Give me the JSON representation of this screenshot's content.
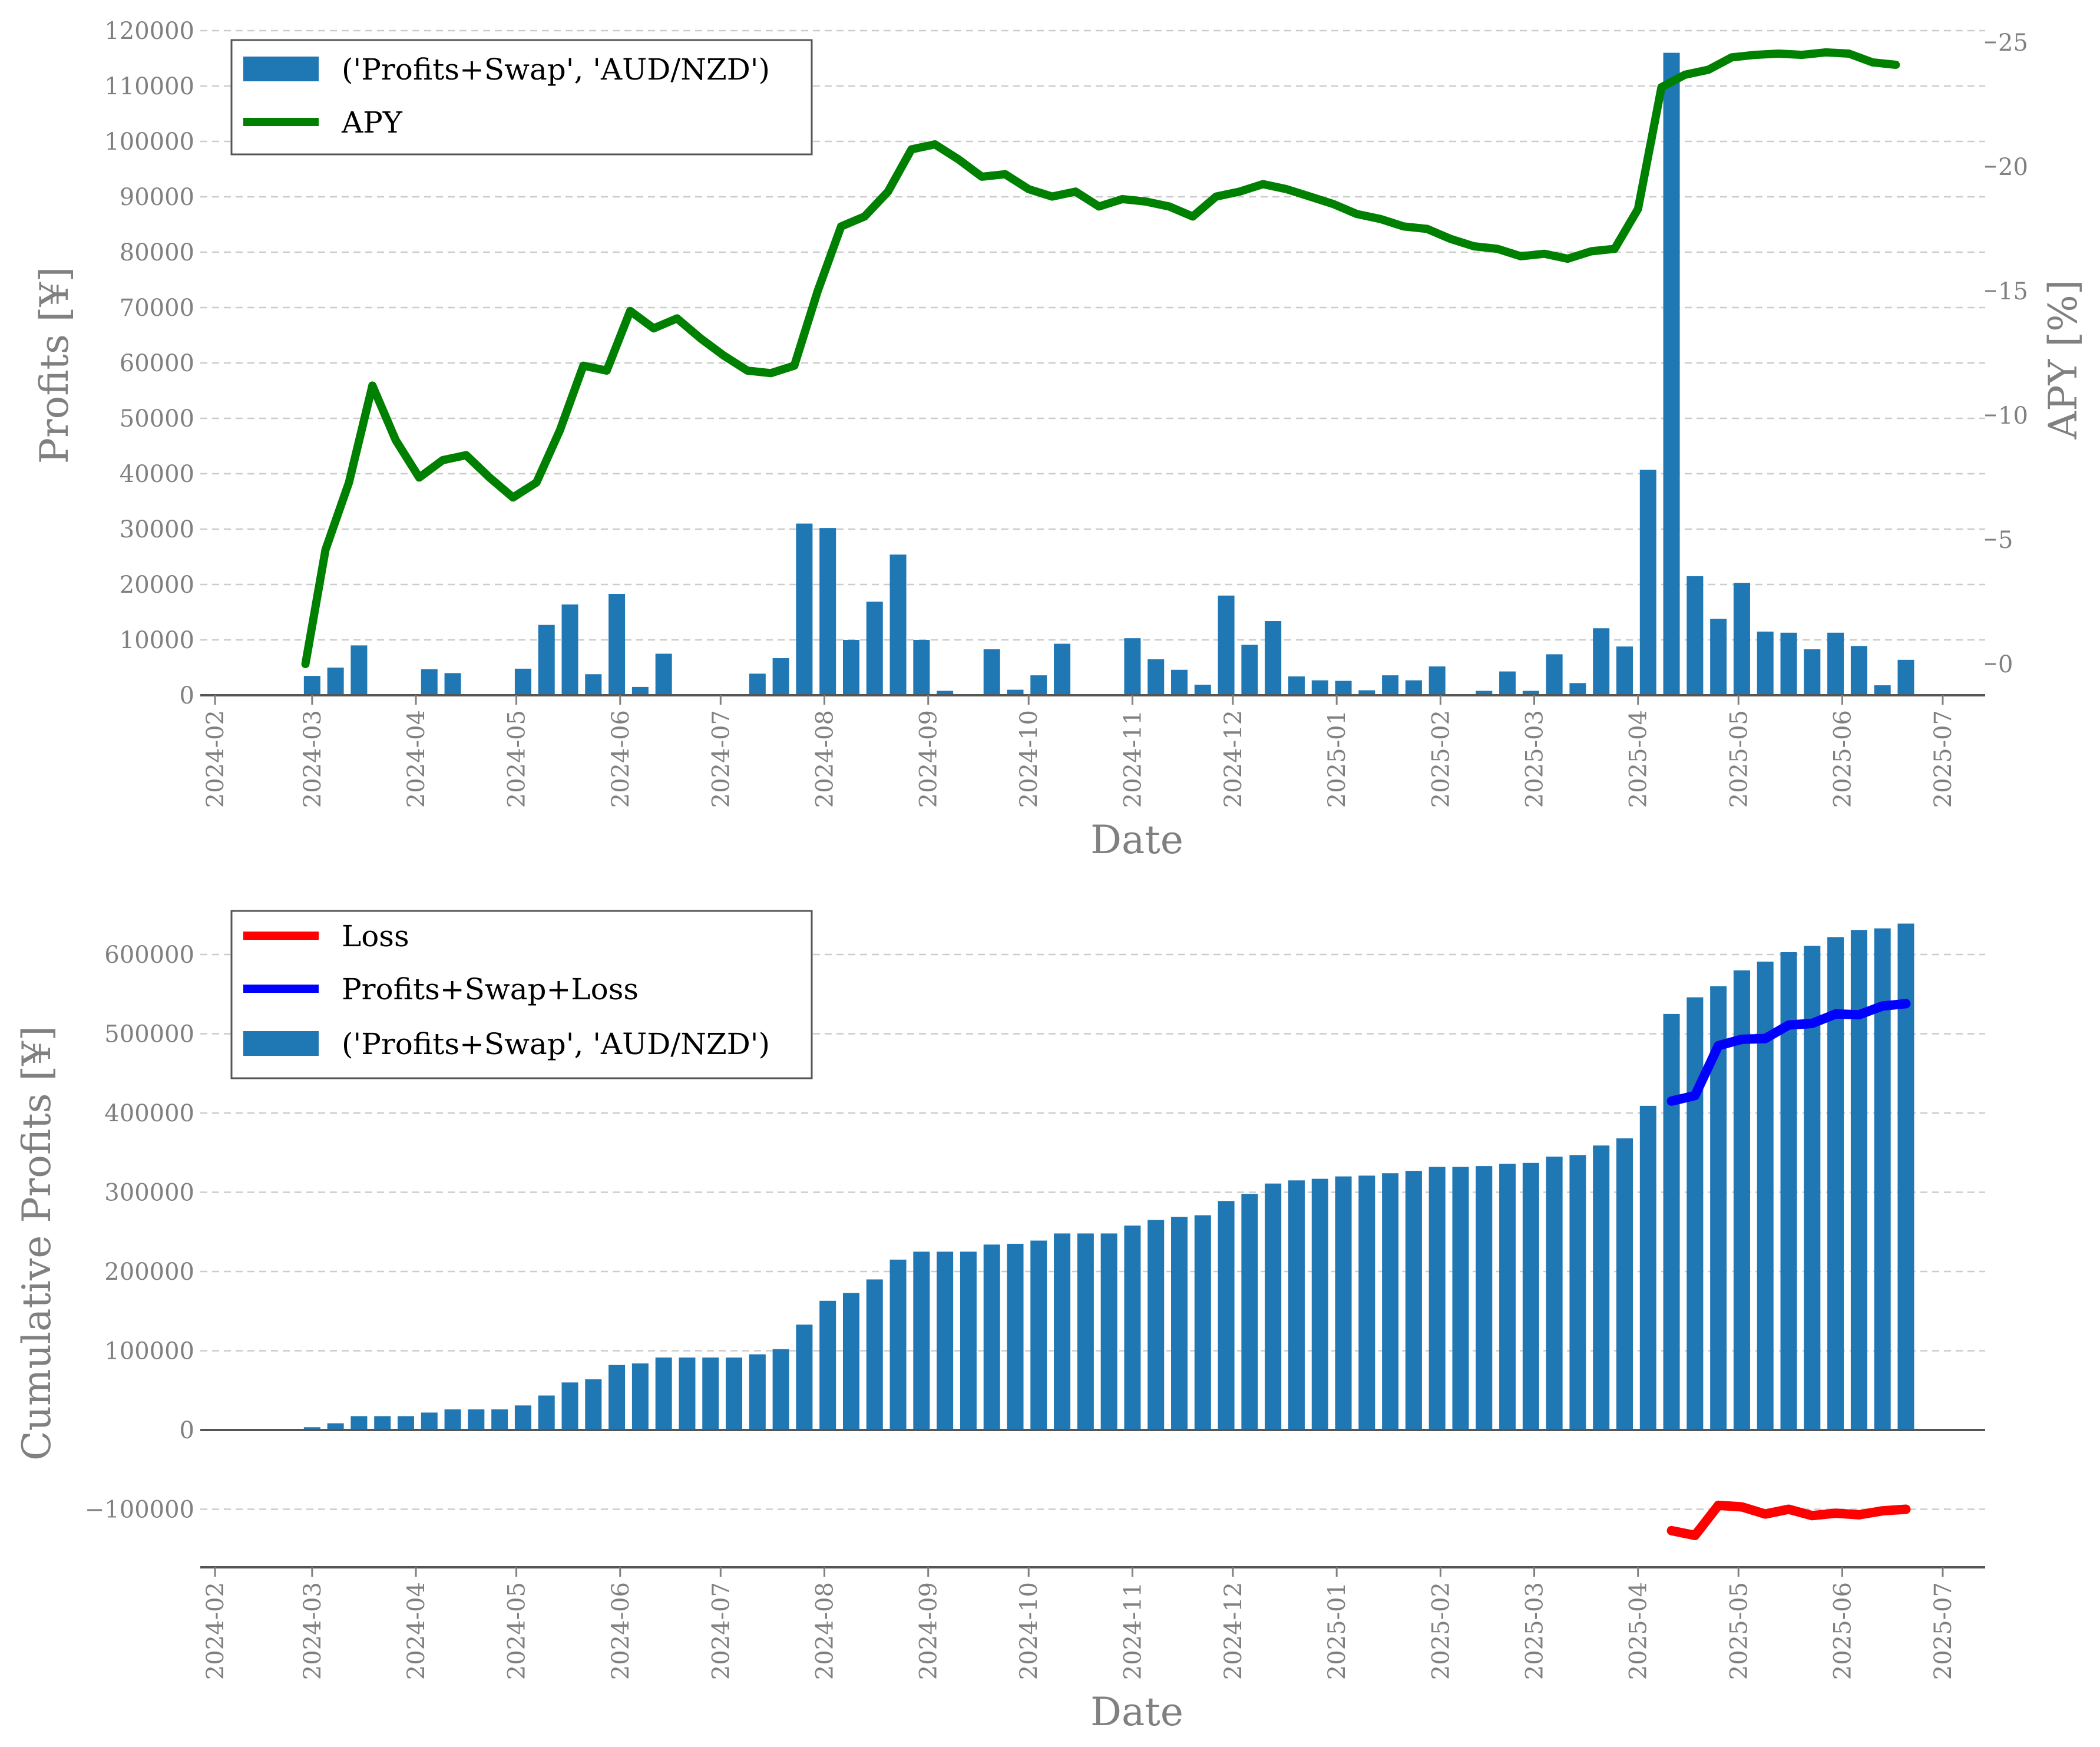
{
  "chart_data": [
    {
      "type": "bar+line",
      "xlabel": "Date",
      "ylabel": "Profits [¥]",
      "y2label": "APY [%]",
      "ylim": [
        0,
        120000
      ],
      "y2lim": [
        -1.2,
        25.5
      ],
      "yticks": [
        0,
        10000,
        20000,
        30000,
        40000,
        50000,
        60000,
        70000,
        80000,
        90000,
        100000,
        110000,
        120000
      ],
      "y2ticks": [
        0,
        5,
        10,
        15,
        20,
        25
      ],
      "xticks": [
        "2024-02",
        "2024-03",
        "2024-04",
        "2024-05",
        "2024-06",
        "2024-07",
        "2024-08",
        "2024-09",
        "2024-10",
        "2024-11",
        "2024-12",
        "2025-01",
        "2025-02",
        "2025-03",
        "2025-04",
        "2025-05",
        "2025-06",
        "2025-07"
      ],
      "grid": "y-dashed",
      "legend": "top-left",
      "bar_series": {
        "name": "('Profits+Swap', 'AUD/NZD')",
        "color": "#1f77b4",
        "x": [
          "2024-03-01",
          "2024-03-08",
          "2024-03-15",
          "2024-03-22",
          "2024-03-29",
          "2024-04-05",
          "2024-04-12",
          "2024-04-19",
          "2024-04-26",
          "2024-05-03",
          "2024-05-10",
          "2024-05-17",
          "2024-05-24",
          "2024-05-31",
          "2024-06-07",
          "2024-06-14",
          "2024-06-21",
          "2024-06-28",
          "2024-07-05",
          "2024-07-12",
          "2024-07-19",
          "2024-07-26",
          "2024-08-02",
          "2024-08-09",
          "2024-08-16",
          "2024-08-23",
          "2024-08-30",
          "2024-09-06",
          "2024-09-13",
          "2024-09-20",
          "2024-09-27",
          "2024-10-04",
          "2024-10-11",
          "2024-10-18",
          "2024-10-25",
          "2024-11-01",
          "2024-11-08",
          "2024-11-15",
          "2024-11-22",
          "2024-11-29",
          "2024-12-06",
          "2024-12-13",
          "2024-12-20",
          "2024-12-27",
          "2025-01-03",
          "2025-01-10",
          "2025-01-17",
          "2025-01-24",
          "2025-01-31",
          "2025-02-07",
          "2025-02-14",
          "2025-02-21",
          "2025-02-28",
          "2025-03-07",
          "2025-03-14",
          "2025-03-21",
          "2025-03-28",
          "2025-04-04",
          "2025-04-11",
          "2025-04-18",
          "2025-04-25",
          "2025-05-02",
          "2025-05-09",
          "2025-05-16",
          "2025-05-23",
          "2025-05-30",
          "2025-06-06",
          "2025-06-13",
          "2025-06-20"
        ],
        "values": [
          3500,
          5000,
          9000,
          0,
          0,
          4700,
          4000,
          0,
          0,
          4800,
          12700,
          16400,
          3800,
          18300,
          1500,
          7500,
          0,
          0,
          0,
          3900,
          6700,
          31000,
          30200,
          10000,
          16900,
          25400,
          10000,
          800,
          0,
          8300,
          1000,
          3600,
          9300,
          0,
          0,
          10300,
          6500,
          4600,
          1900,
          18000,
          9100,
          13400,
          3400,
          2700,
          2600,
          900,
          3600,
          2700,
          5200,
          0,
          800,
          4300,
          800,
          7400,
          2200,
          12100,
          8800,
          40700,
          116000,
          21500,
          13800,
          20300,
          11500,
          11300,
          8300,
          11300,
          8900,
          1800,
          6400
        ]
      },
      "line_series": {
        "name": "APY",
        "color": "#008000",
        "x": [
          "2024-02-28",
          "2024-03-05",
          "2024-03-12",
          "2024-03-19",
          "2024-03-26",
          "2024-04-02",
          "2024-04-09",
          "2024-04-16",
          "2024-04-23",
          "2024-04-30",
          "2024-05-07",
          "2024-05-14",
          "2024-05-21",
          "2024-05-28",
          "2024-06-04",
          "2024-06-11",
          "2024-06-18",
          "2024-06-25",
          "2024-07-02",
          "2024-07-09",
          "2024-07-16",
          "2024-07-23",
          "2024-07-30",
          "2024-08-06",
          "2024-08-13",
          "2024-08-20",
          "2024-08-27",
          "2024-09-03",
          "2024-09-10",
          "2024-09-17",
          "2024-09-24",
          "2024-10-01",
          "2024-10-08",
          "2024-10-15",
          "2024-10-22",
          "2024-10-29",
          "2024-11-05",
          "2024-11-12",
          "2024-11-19",
          "2024-11-26",
          "2024-12-03",
          "2024-12-10",
          "2024-12-17",
          "2024-12-24",
          "2024-12-31",
          "2025-01-07",
          "2025-01-14",
          "2025-01-21",
          "2025-01-28",
          "2025-02-04",
          "2025-02-11",
          "2025-02-18",
          "2025-02-25",
          "2025-03-04",
          "2025-03-11",
          "2025-03-18",
          "2025-03-25",
          "2025-04-01",
          "2025-04-08",
          "2025-04-15",
          "2025-04-22",
          "2025-04-29",
          "2025-05-06",
          "2025-05-13",
          "2025-05-20",
          "2025-05-27",
          "2025-06-03",
          "2025-06-10",
          "2025-06-17"
        ],
        "values": [
          0.0,
          4.6,
          7.3,
          11.2,
          9.0,
          7.5,
          8.2,
          8.4,
          7.5,
          6.7,
          7.3,
          9.4,
          12.0,
          11.8,
          14.2,
          13.5,
          13.9,
          13.1,
          12.4,
          11.8,
          11.7,
          12.0,
          15.0,
          17.6,
          18.0,
          19.0,
          20.7,
          20.9,
          20.3,
          19.6,
          19.7,
          19.1,
          18.8,
          19.0,
          18.4,
          18.7,
          18.6,
          18.4,
          18.0,
          18.8,
          19.0,
          19.3,
          19.1,
          18.8,
          18.5,
          18.1,
          17.9,
          17.6,
          17.5,
          17.1,
          16.8,
          16.7,
          16.4,
          16.5,
          16.3,
          16.6,
          16.7,
          18.3,
          23.2,
          23.7,
          23.9,
          24.4,
          24.5,
          24.55,
          24.5,
          24.6,
          24.55,
          24.2,
          24.1
        ]
      }
    },
    {
      "type": "bar+line",
      "xlabel": "Date",
      "ylabel": "Cumulative Profits [¥]",
      "ylim": [
        -170000,
        660000
      ],
      "yticks": [
        -100000,
        0,
        100000,
        200000,
        300000,
        400000,
        500000,
        600000
      ],
      "ytick_labels": [
        "−100000",
        "0",
        "100000",
        "200000",
        "300000",
        "400000",
        "500000",
        "600000"
      ],
      "xticks": [
        "2024-02",
        "2024-03",
        "2024-04",
        "2024-05",
        "2024-06",
        "2024-07",
        "2024-08",
        "2024-09",
        "2024-10",
        "2024-11",
        "2024-12",
        "2025-01",
        "2025-02",
        "2025-03",
        "2025-04",
        "2025-05",
        "2025-06",
        "2025-07"
      ],
      "grid": "y-dashed",
      "legend": "top-left",
      "series": [
        {
          "name": "Loss",
          "color": "#ff0000",
          "kind": "line",
          "x": [
            "2025-04-11",
            "2025-04-18",
            "2025-04-25",
            "2025-05-02",
            "2025-05-09",
            "2025-05-16",
            "2025-05-23",
            "2025-05-30",
            "2025-06-06",
            "2025-06-13",
            "2025-06-20"
          ],
          "values": [
            -127000,
            -133000,
            -95000,
            -97000,
            -106000,
            -100000,
            -108000,
            -105000,
            -107000,
            -102000,
            -100000
          ]
        },
        {
          "name": "Profits+Swap+Loss",
          "color": "#0000ff",
          "kind": "line",
          "x": [
            "2025-04-11",
            "2025-04-18",
            "2025-04-25",
            "2025-05-02",
            "2025-05-09",
            "2025-05-16",
            "2025-05-23",
            "2025-05-30",
            "2025-06-06",
            "2025-06-13",
            "2025-06-20"
          ],
          "values": [
            415000,
            422000,
            485000,
            493000,
            494000,
            511000,
            513000,
            525000,
            524000,
            535000,
            538000
          ]
        },
        {
          "name": "('Profits+Swap', 'AUD/NZD')",
          "color": "#1f77b4",
          "kind": "bar",
          "x": [
            "2024-03-01",
            "2024-03-08",
            "2024-03-15",
            "2024-03-22",
            "2024-03-29",
            "2024-04-05",
            "2024-04-12",
            "2024-04-19",
            "2024-04-26",
            "2024-05-03",
            "2024-05-10",
            "2024-05-17",
            "2024-05-24",
            "2024-05-31",
            "2024-06-07",
            "2024-06-14",
            "2024-06-21",
            "2024-06-28",
            "2024-07-05",
            "2024-07-12",
            "2024-07-19",
            "2024-07-26",
            "2024-08-02",
            "2024-08-09",
            "2024-08-16",
            "2024-08-23",
            "2024-08-30",
            "2024-09-06",
            "2024-09-13",
            "2024-09-20",
            "2024-09-27",
            "2024-10-04",
            "2024-10-11",
            "2024-10-18",
            "2024-10-25",
            "2024-11-01",
            "2024-11-08",
            "2024-11-15",
            "2024-11-22",
            "2024-11-29",
            "2024-12-06",
            "2024-12-13",
            "2024-12-20",
            "2024-12-27",
            "2025-01-03",
            "2025-01-10",
            "2025-01-17",
            "2025-01-24",
            "2025-01-31",
            "2025-02-07",
            "2025-02-14",
            "2025-02-21",
            "2025-02-28",
            "2025-03-07",
            "2025-03-14",
            "2025-03-21",
            "2025-03-28",
            "2025-04-04",
            "2025-04-11",
            "2025-04-18",
            "2025-04-25",
            "2025-05-02",
            "2025-05-09",
            "2025-05-16",
            "2025-05-23",
            "2025-05-30",
            "2025-06-06",
            "2025-06-13",
            "2025-06-20"
          ],
          "values": [
            3500,
            8500,
            17500,
            17500,
            17500,
            22000,
            26000,
            26000,
            26000,
            31000,
            43500,
            60000,
            64000,
            82000,
            84000,
            91500,
            91500,
            91500,
            91500,
            95500,
            102000,
            133000,
            163000,
            173000,
            190000,
            215000,
            225000,
            225000,
            225000,
            234000,
            235000,
            239000,
            248000,
            248000,
            248000,
            258000,
            265000,
            269000,
            271000,
            289000,
            298000,
            311000,
            315000,
            317000,
            320000,
            321000,
            324000,
            327000,
            332000,
            332000,
            333000,
            336000,
            337000,
            345000,
            347000,
            359000,
            368000,
            409000,
            525000,
            546000,
            560000,
            580000,
            591000,
            603000,
            611000,
            622000,
            631000,
            633000,
            639000
          ]
        }
      ]
    }
  ]
}
